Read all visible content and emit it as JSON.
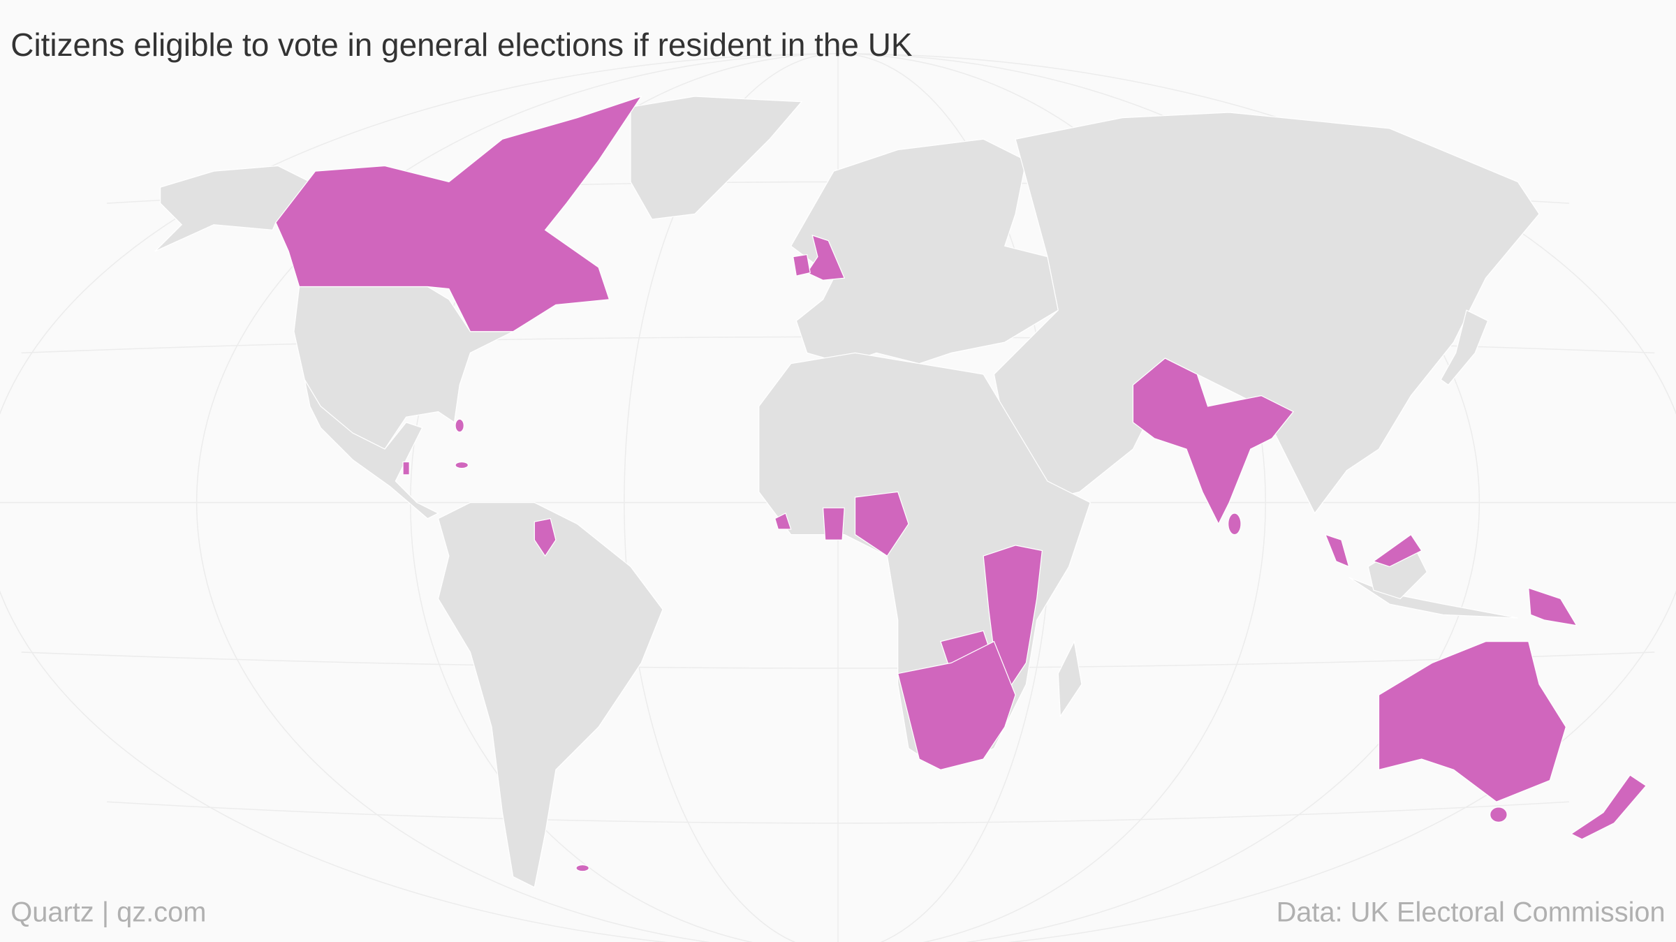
{
  "header": {
    "title": "Citizens eligible to vote in general elections if resident in the UK"
  },
  "footer": {
    "credit": "Quartz | qz.com",
    "source": "Data: UK Electoral Commission"
  }
}
